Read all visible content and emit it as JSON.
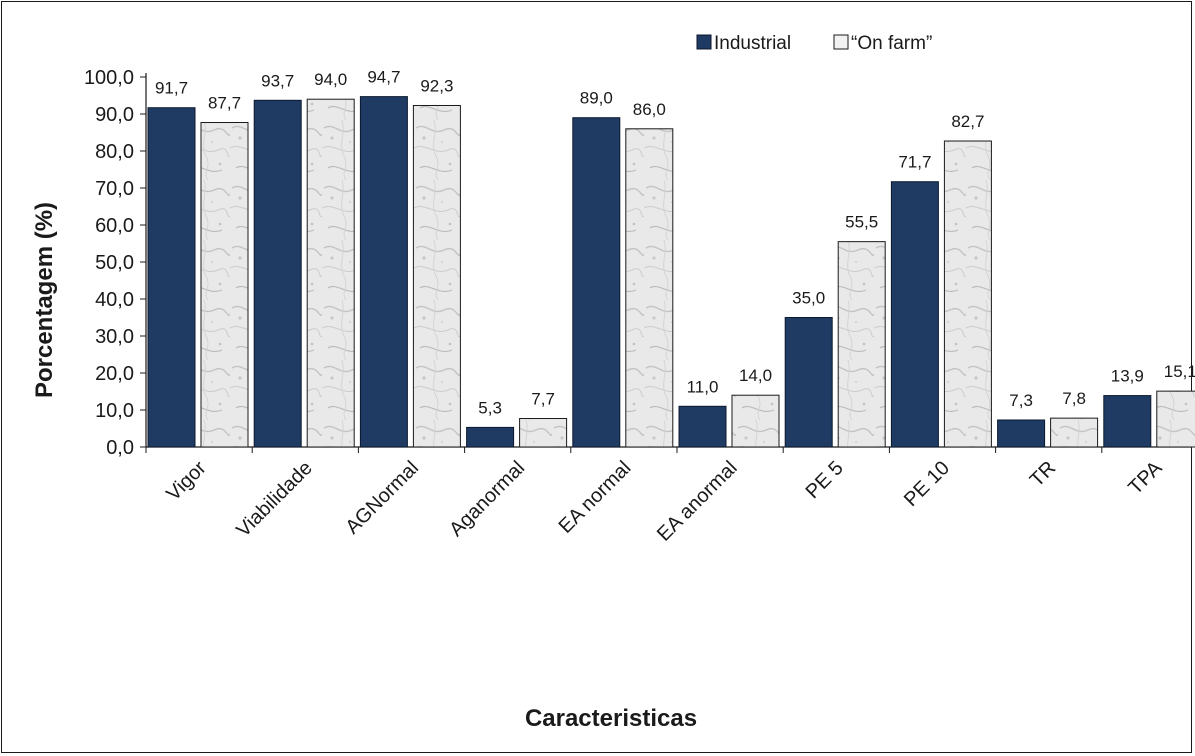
{
  "chart_data": {
    "type": "bar",
    "title": "",
    "xlabel": "Caracteristicas",
    "ylabel": "Porcentagem (%)",
    "ylim": [
      0,
      100
    ],
    "ytick_labels": [
      "0,0",
      "10,0",
      "20,0",
      "30,0",
      "40,0",
      "50,0",
      "60,0",
      "70,0",
      "80,0",
      "90,0",
      "100,0"
    ],
    "categories": [
      "Vigor",
      "Viabilidade",
      "AGNormal",
      "Aganormal",
      "EA normal",
      "EA anormal",
      "PE 5",
      "PE 10",
      "TR",
      "TPA"
    ],
    "series": [
      {
        "name": "Industrial",
        "color": "#1f3b63",
        "values": [
          91.7,
          93.7,
          94.7,
          5.3,
          89.0,
          11.0,
          35.0,
          71.7,
          7.3,
          13.9
        ],
        "labels": [
          "91,7",
          "93,7",
          "94,7",
          "5,3",
          "89,0",
          "11,0",
          "35,0",
          "71,7",
          "7,3",
          "13,9"
        ]
      },
      {
        "name": "“On farm”",
        "color": "#e6e6e6",
        "pattern": "marble-texture",
        "values": [
          87.7,
          94.0,
          92.3,
          7.7,
          86.0,
          14.0,
          55.5,
          82.7,
          7.8,
          15.1
        ],
        "labels": [
          "87,7",
          "94,0",
          "92,3",
          "7,7",
          "86,0",
          "14,0",
          "55,5",
          "82,7",
          "7,8",
          "15,1"
        ]
      }
    ],
    "grid": false,
    "legend_position": "top-right"
  }
}
